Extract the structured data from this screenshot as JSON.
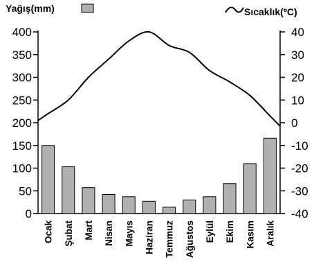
{
  "chart_data": {
    "type": "bar+line",
    "categories": [
      "Ocak",
      "Şubat",
      "Mart",
      "Nisan",
      "Mayıs",
      "Haziran",
      "Temmuz",
      "Ağustos",
      "Eylül",
      "Ekim",
      "Kasım",
      "Aralık"
    ],
    "series": [
      {
        "name": "Yağış(mm)",
        "type": "bar",
        "axis": "left",
        "color": "#b0b0b0",
        "values": [
          150,
          103,
          57,
          42,
          37,
          27,
          14,
          30,
          37,
          66,
          110,
          166
        ]
      },
      {
        "name": "Sıcaklık(ºC)",
        "type": "line",
        "axis": "right",
        "color": "#000000",
        "values": [
          4,
          10,
          20,
          28,
          36,
          40,
          34,
          31,
          23,
          18,
          12,
          3
        ]
      }
    ],
    "left_axis": {
      "ylim": [
        0,
        400
      ],
      "ticks": [
        0,
        50,
        100,
        150,
        200,
        250,
        300,
        350,
        400
      ],
      "tick_labels": [
        "0",
        "50",
        "100",
        "150",
        "200",
        "250",
        "300",
        "350",
        "400"
      ]
    },
    "right_axis": {
      "ylim": [
        -40,
        40
      ],
      "ticks": [
        -40,
        -30,
        -20,
        -10,
        0,
        10,
        20,
        30,
        40
      ],
      "tick_labels": [
        "-40",
        "-30",
        "-20",
        "-10",
        "0",
        "10",
        "20",
        "30",
        "40"
      ]
    },
    "legend": {
      "left_label": "Yağış(mm)",
      "right_label": "Sıcaklık(ºC)",
      "placement": "top"
    },
    "grid": false
  }
}
